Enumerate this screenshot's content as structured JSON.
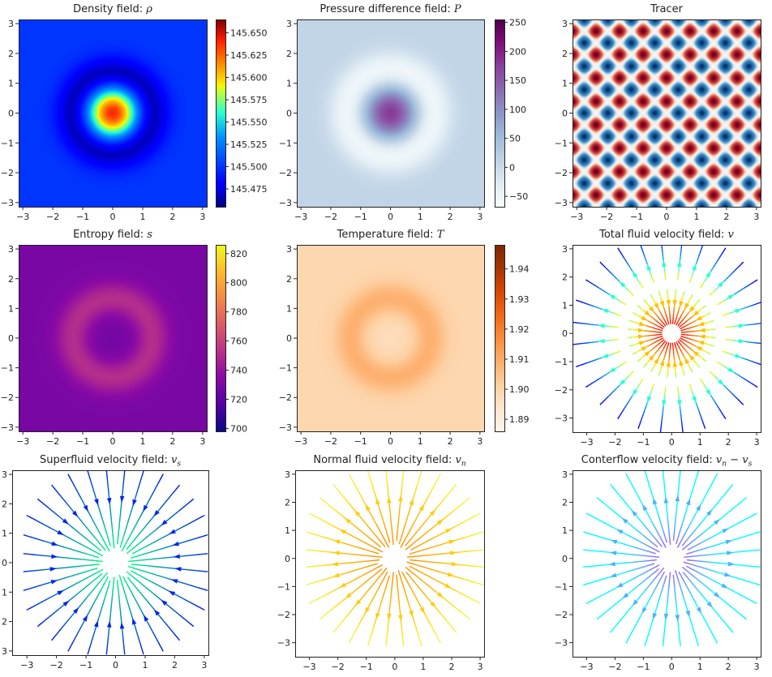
{
  "figure": {
    "layout": "3x3 grid"
  },
  "chart_data": [
    {
      "id": "density",
      "type": "heatmap",
      "title": "Density field: ",
      "title_symbol": "ρ",
      "xlabel": "",
      "ylabel": "",
      "xlim": [
        -3.14,
        3.14
      ],
      "ylim": [
        -3.14,
        3.14
      ],
      "xticks": [
        "−3",
        "−2",
        "−1",
        "0",
        "1",
        "2",
        "3"
      ],
      "yticks": [
        "3",
        "2",
        "1",
        "0",
        "−1",
        "−2",
        "−3"
      ],
      "colormap": "jet",
      "colorbar": {
        "range": [
          145.455,
          145.665
        ],
        "ticks": [
          "145.650",
          "145.625",
          "145.600",
          "145.575",
          "145.550",
          "145.525",
          "145.500",
          "145.475"
        ],
        "tick_values": [
          145.65,
          145.625,
          145.6,
          145.575,
          145.55,
          145.525,
          145.5,
          145.475
        ]
      },
      "field": {
        "kind": "ring",
        "center_value": 145.64,
        "ring_value": 145.46,
        "far_value": 145.5,
        "ring_radius": 1.3
      }
    },
    {
      "id": "pressure",
      "type": "heatmap",
      "title": "Pressure difference field: ",
      "title_symbol": "P",
      "xlim": [
        -3.14,
        3.14
      ],
      "ylim": [
        -3.14,
        3.14
      ],
      "xticks": [
        "−3",
        "−2",
        "−1",
        "0",
        "1",
        "2",
        "3"
      ],
      "yticks": [
        "3",
        "2",
        "1",
        "0",
        "−1",
        "−2",
        "−3"
      ],
      "colormap": "BuPu",
      "colorbar": {
        "range": [
          -68,
          255
        ],
        "ticks": [
          "250",
          "200",
          "150",
          "100",
          "50",
          "0",
          "−50"
        ],
        "tick_values": [
          250,
          200,
          150,
          100,
          50,
          0,
          -50
        ]
      },
      "field": {
        "kind": "ring",
        "center_value": 180,
        "ring_value": -62,
        "far_value": 10,
        "ring_radius": 1.4
      }
    },
    {
      "id": "tracer",
      "type": "heatmap",
      "title": "Tracer",
      "title_symbol": "",
      "xlim": [
        -3.14,
        3.14
      ],
      "ylim": [
        -3.14,
        3.14
      ],
      "xticks": [
        "−3",
        "−2",
        "−1",
        "0",
        "1",
        "2",
        "3"
      ],
      "yticks": [
        "3",
        "2",
        "1",
        "0",
        "−1",
        "−2",
        "−3"
      ],
      "colormap": "RdBu",
      "field": {
        "kind": "checker",
        "wavenumber": 8
      }
    },
    {
      "id": "entropy",
      "type": "heatmap",
      "title": "Entropy field: ",
      "title_symbol": "s",
      "xlim": [
        -3.14,
        3.14
      ],
      "ylim": [
        -3.14,
        3.14
      ],
      "xticks": [
        "−3",
        "−2",
        "−1",
        "0",
        "1",
        "2",
        "3"
      ],
      "yticks": [
        "3",
        "2",
        "1",
        "0",
        "−1",
        "−2",
        "−3"
      ],
      "colormap": "plasma",
      "colorbar": {
        "range": [
          698,
          826
        ],
        "ticks": [
          "820",
          "800",
          "780",
          "760",
          "740",
          "720",
          "700"
        ],
        "tick_values": [
          820,
          800,
          780,
          760,
          740,
          720,
          700
        ]
      },
      "field": {
        "kind": "ring",
        "center_value": 727,
        "ring_value": 752,
        "far_value": 729,
        "ring_radius": 1.3
      }
    },
    {
      "id": "temperature",
      "type": "heatmap",
      "title": "Temperature field: ",
      "title_symbol": "T",
      "xlim": [
        -3.14,
        3.14
      ],
      "ylim": [
        -3.14,
        3.14
      ],
      "xticks": [
        "−3",
        "−2",
        "−1",
        "0",
        "1",
        "2",
        "3"
      ],
      "yticks": [
        "3",
        "2",
        "1",
        "0",
        "−1",
        "−2",
        "−3"
      ],
      "colormap": "Oranges",
      "colorbar": {
        "range": [
          1.886,
          1.948
        ],
        "ticks": [
          "1.94",
          "1.93",
          "1.92",
          "1.91",
          "1.90",
          "1.89"
        ],
        "tick_values": [
          1.94,
          1.93,
          1.92,
          1.91,
          1.9,
          1.89
        ]
      },
      "field": {
        "kind": "ring",
        "center_value": 1.897,
        "ring_value": 1.909,
        "far_value": 1.899,
        "ring_radius": 1.3
      }
    },
    {
      "id": "total-velocity",
      "type": "streamplot",
      "title": "Total fluid velocity field: ",
      "title_symbol": "v",
      "xlim": [
        -3.5,
        3.14
      ],
      "ylim": [
        -3.5,
        3.14
      ],
      "xticks": [
        "−3",
        "−2",
        "−1",
        "0",
        "1",
        "2",
        "3"
      ],
      "yticks": [
        "3",
        "2",
        "1",
        "0",
        "−1",
        "−2",
        "−3"
      ],
      "colormap": "jet",
      "field": {
        "kind": "ring-flow",
        "inner_direction": "inward",
        "outer_direction": "outward",
        "ring_radius": 1.7
      }
    },
    {
      "id": "superfluid-velocity",
      "type": "streamplot",
      "title": "Superfluid velocity field: ",
      "title_symbol": "v",
      "title_sub": "s",
      "xlim": [
        -3.5,
        3.14
      ],
      "ylim": [
        -3.14,
        3.14
      ],
      "xticks": [
        "−3",
        "−2",
        "−1",
        "0",
        "1",
        "2",
        "3"
      ],
      "yticks": [
        "3",
        "2",
        "1",
        "0",
        "1",
        "2",
        "3"
      ],
      "colormap": "winter",
      "field": {
        "kind": "radial",
        "direction": "inward"
      }
    },
    {
      "id": "normal-velocity",
      "type": "streamplot",
      "title": "Normal fluid velocity field: ",
      "title_symbol": "v",
      "title_sub": "n",
      "xlim": [
        -3.5,
        3.14
      ],
      "ylim": [
        -3.5,
        3.14
      ],
      "xticks": [
        "−3",
        "−2",
        "−1",
        "0",
        "1",
        "2",
        "3"
      ],
      "yticks": [
        "3",
        "2",
        "1",
        "0",
        "−1",
        "−2",
        "−3"
      ],
      "colormap": "Wistia",
      "field": {
        "kind": "radial",
        "direction": "outward"
      }
    },
    {
      "id": "counterflow-velocity",
      "type": "streamplot",
      "title": "Conterflow velocity field: ",
      "title_symbol": "v",
      "title_sub": "n",
      "title_suffix": " − ",
      "title_symbol2": "v",
      "title_sub2": "s",
      "xlim": [
        -3.5,
        3.14
      ],
      "ylim": [
        -3.5,
        3.14
      ],
      "xticks": [
        "−3",
        "−2",
        "−1",
        "0",
        "1",
        "2",
        "3"
      ],
      "yticks": [
        "3",
        "2",
        "1",
        "0",
        "−1",
        "−2",
        "−3"
      ],
      "colormap": "cool",
      "field": {
        "kind": "radial",
        "direction": "outward"
      }
    }
  ]
}
